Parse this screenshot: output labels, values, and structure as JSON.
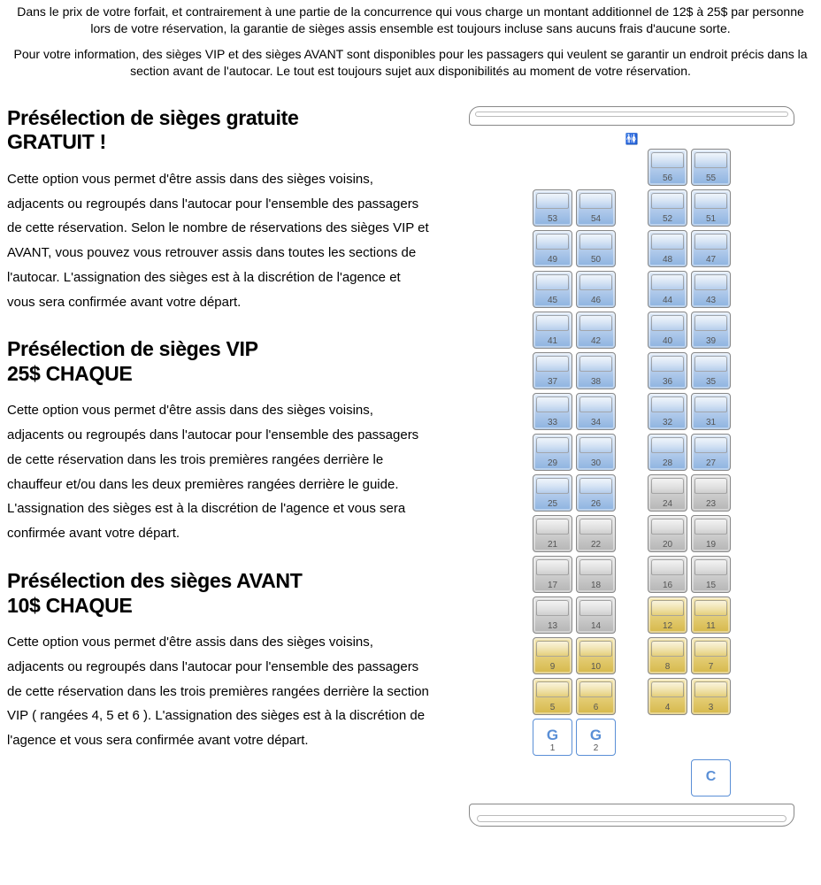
{
  "intro": {
    "p1": "Dans le prix de votre forfait, et contrairement à une partie de la concurrence qui vous charge un montant additionnel de 12$ à 25$ par personne lors de votre réservation, la garantie  de sièges assis ensemble est toujours incluse sans aucuns frais d'aucune sorte.",
    "p2": "Pour votre information, des sièges VIP et des sièges AVANT sont disponibles pour les passagers qui veulent se garantir  un endroit précis dans la section avant de l'autocar. Le tout est toujours sujet aux disponibilités au moment de votre réservation."
  },
  "sections": {
    "free": {
      "title_l1": "Présélection de sièges gratuite",
      "title_l2": "GRATUIT !",
      "body": "Cette option vous permet d'être assis dans des sièges voisins, adjacents ou regroupés dans l'autocar pour l'ensemble des passagers de cette réservation. Selon le nombre de réservations des sièges VIP et AVANT, vous pouvez vous retrouver assis dans toutes les sections de l'autocar. L'assignation des sièges est à la discrétion de l'agence et vous sera confirmée avant votre départ."
    },
    "vip": {
      "title_l1": "Présélection de sièges VIP",
      "title_l2": "25$ CHAQUE",
      "body": "Cette option vous permet d'être assis dans des sièges voisins, adjacents ou regroupés dans l'autocar pour l'ensemble des passagers de cette réservation dans les trois premières rangées derrière le chauffeur et/ou dans les deux premières rangées derrière le guide. L'assignation des sièges est à la discrétion de l'agence et vous sera confirmée avant votre départ."
    },
    "avant": {
      "title_l1": "Présélection des sièges AVANT",
      "title_l2": "10$ CHAQUE",
      "body": "Cette option vous permet d'être assis dans des sièges voisins, adjacents ou regroupés dans l'autocar pour l'ensemble des passagers de cette réservation dans les trois premières rangées derrière la section VIP ( rangées 4, 5 et 6 ). L'assignation des sièges est à la discrétion de l'agence et vous sera confirmée avant votre départ."
    }
  },
  "bus": {
    "wc_label": "♠♣",
    "colors": {
      "blue_gradient": [
        "#dde9f7",
        "#b5cdec",
        "#8db3e0"
      ],
      "grey_gradient": [
        "#e5e5e5",
        "#cfcfcf",
        "#b5b5b5"
      ],
      "gold_gradient": [
        "#f3e6b0",
        "#e5cf7a",
        "#d6b84a"
      ],
      "guide_border": "#5a8fd6"
    },
    "rows": [
      {
        "left": [
          {
            "n": "",
            "t": "empty"
          },
          {
            "n": "",
            "t": "empty"
          }
        ],
        "right": [
          {
            "n": "56",
            "t": "blue"
          },
          {
            "n": "55",
            "t": "blue"
          }
        ]
      },
      {
        "left": [
          {
            "n": "53",
            "t": "blue"
          },
          {
            "n": "54",
            "t": "blue"
          }
        ],
        "right": [
          {
            "n": "52",
            "t": "blue"
          },
          {
            "n": "51",
            "t": "blue"
          }
        ]
      },
      {
        "left": [
          {
            "n": "49",
            "t": "blue"
          },
          {
            "n": "50",
            "t": "blue"
          }
        ],
        "right": [
          {
            "n": "48",
            "t": "blue"
          },
          {
            "n": "47",
            "t": "blue"
          }
        ]
      },
      {
        "left": [
          {
            "n": "45",
            "t": "blue"
          },
          {
            "n": "46",
            "t": "blue"
          }
        ],
        "right": [
          {
            "n": "44",
            "t": "blue"
          },
          {
            "n": "43",
            "t": "blue"
          }
        ]
      },
      {
        "left": [
          {
            "n": "41",
            "t": "blue"
          },
          {
            "n": "42",
            "t": "blue"
          }
        ],
        "right": [
          {
            "n": "40",
            "t": "blue"
          },
          {
            "n": "39",
            "t": "blue"
          }
        ]
      },
      {
        "left": [
          {
            "n": "37",
            "t": "blue"
          },
          {
            "n": "38",
            "t": "blue"
          }
        ],
        "right": [
          {
            "n": "36",
            "t": "blue"
          },
          {
            "n": "35",
            "t": "blue"
          }
        ]
      },
      {
        "left": [
          {
            "n": "33",
            "t": "blue"
          },
          {
            "n": "34",
            "t": "blue"
          }
        ],
        "right": [
          {
            "n": "32",
            "t": "blue"
          },
          {
            "n": "31",
            "t": "blue"
          }
        ]
      },
      {
        "left": [
          {
            "n": "29",
            "t": "blue"
          },
          {
            "n": "30",
            "t": "blue"
          }
        ],
        "right": [
          {
            "n": "28",
            "t": "blue"
          },
          {
            "n": "27",
            "t": "blue"
          }
        ]
      },
      {
        "left": [
          {
            "n": "25",
            "t": "blue"
          },
          {
            "n": "26",
            "t": "blue"
          }
        ],
        "right": [
          {
            "n": "24",
            "t": "grey"
          },
          {
            "n": "23",
            "t": "grey"
          }
        ]
      },
      {
        "left": [
          {
            "n": "21",
            "t": "grey"
          },
          {
            "n": "22",
            "t": "grey"
          }
        ],
        "right": [
          {
            "n": "20",
            "t": "grey"
          },
          {
            "n": "19",
            "t": "grey"
          }
        ]
      },
      {
        "left": [
          {
            "n": "17",
            "t": "grey"
          },
          {
            "n": "18",
            "t": "grey"
          }
        ],
        "right": [
          {
            "n": "16",
            "t": "grey"
          },
          {
            "n": "15",
            "t": "grey"
          }
        ]
      },
      {
        "left": [
          {
            "n": "13",
            "t": "grey"
          },
          {
            "n": "14",
            "t": "grey"
          }
        ],
        "right": [
          {
            "n": "12",
            "t": "gold"
          },
          {
            "n": "11",
            "t": "gold"
          }
        ]
      },
      {
        "left": [
          {
            "n": "9",
            "t": "gold"
          },
          {
            "n": "10",
            "t": "gold"
          }
        ],
        "right": [
          {
            "n": "8",
            "t": "gold"
          },
          {
            "n": "7",
            "t": "gold"
          }
        ]
      },
      {
        "left": [
          {
            "n": "5",
            "t": "gold"
          },
          {
            "n": "6",
            "t": "gold"
          }
        ],
        "right": [
          {
            "n": "4",
            "t": "gold"
          },
          {
            "n": "3",
            "t": "gold"
          }
        ]
      },
      {
        "left": [
          {
            "n": "1",
            "t": "guide",
            "label": "G"
          },
          {
            "n": "2",
            "t": "guide",
            "label": "G"
          }
        ],
        "right": [
          {
            "n": "",
            "t": "empty"
          },
          {
            "n": "",
            "t": "empty"
          }
        ]
      },
      {
        "left": [
          {
            "n": "",
            "t": "empty"
          },
          {
            "n": "",
            "t": "empty"
          }
        ],
        "right": [
          {
            "n": "",
            "t": "empty"
          },
          {
            "n": "",
            "t": "driver",
            "label": "C"
          }
        ]
      }
    ]
  }
}
